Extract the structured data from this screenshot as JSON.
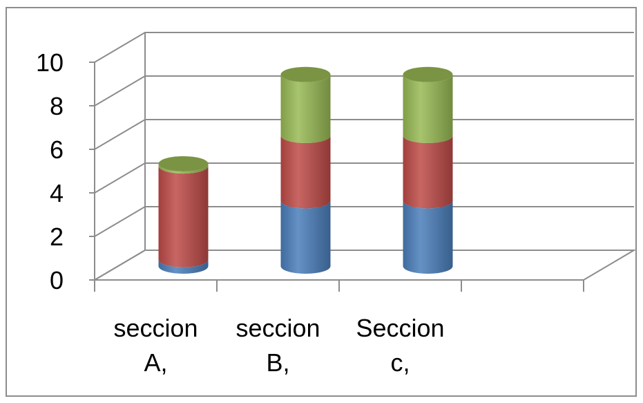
{
  "chart_data": {
    "type": "bar",
    "stacked": true,
    "style": "3d-cylinder",
    "categories": [
      [
        "seccion",
        "A,"
      ],
      [
        "seccion",
        "B,"
      ],
      [
        "Seccion",
        "c,"
      ],
      [
        "",
        ""
      ]
    ],
    "series": [
      {
        "color": "#4a7ebb",
        "values": [
          0.3,
          3.0,
          3.0,
          0
        ]
      },
      {
        "color": "#be4b48",
        "values": [
          4.3,
          3.0,
          3.0,
          0
        ]
      },
      {
        "color": "#98b954",
        "values": [
          0.1,
          2.8,
          2.8,
          0
        ]
      }
    ],
    "ylim": [
      0,
      10
    ],
    "yticks": [
      "0",
      "2",
      "4",
      "6",
      "8",
      "10"
    ],
    "grid": true,
    "legend": "none"
  }
}
